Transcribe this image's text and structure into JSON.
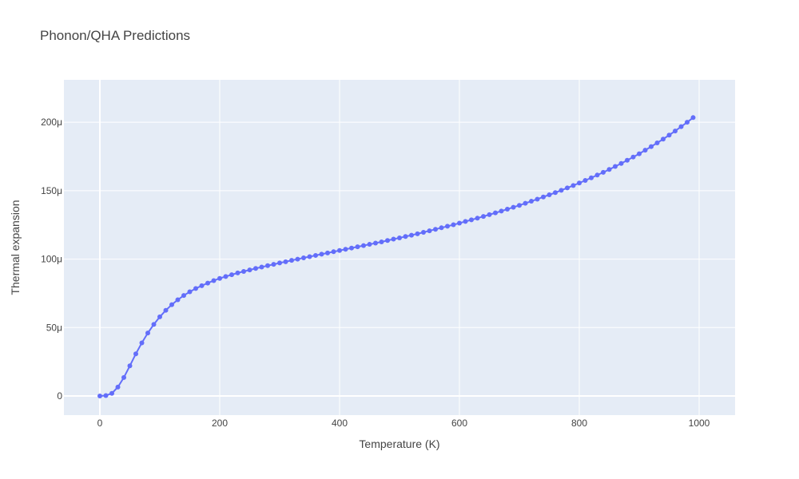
{
  "chart_data": {
    "type": "line",
    "title": "Phonon/QHA Predictions",
    "xlabel": "Temperature (K)",
    "ylabel": "Thermal expansion",
    "xlim": [
      -60,
      1060
    ],
    "ylim": [
      -14,
      231
    ],
    "x_ticks": [
      0,
      200,
      400,
      600,
      800,
      1000
    ],
    "x_tick_labels": [
      "0",
      "200",
      "400",
      "600",
      "800",
      "1000"
    ],
    "y_ticks": [
      0,
      50,
      100,
      150,
      200
    ],
    "y_tick_labels": [
      "0",
      "50μ",
      "100μ",
      "150μ",
      "200μ"
    ],
    "y_unit_note": "values in units of 1e-6",
    "grid": true,
    "legend": "none",
    "colors": {
      "series": "#636efa",
      "plot_bg": "#e5ecf6",
      "grid": "#ffffff"
    },
    "series": [
      {
        "x": [
          0,
          10,
          20,
          30,
          40,
          50,
          60,
          70,
          80,
          90,
          100,
          110,
          120,
          130,
          140,
          150,
          160,
          170,
          180,
          190,
          200,
          210,
          220,
          230,
          240,
          250,
          260,
          270,
          280,
          290,
          300,
          310,
          320,
          330,
          340,
          350,
          360,
          370,
          380,
          390,
          400,
          410,
          420,
          430,
          440,
          450,
          460,
          470,
          480,
          490,
          500,
          510,
          520,
          530,
          540,
          550,
          560,
          570,
          580,
          590,
          600,
          610,
          620,
          630,
          640,
          650,
          660,
          670,
          680,
          690,
          700,
          710,
          720,
          730,
          740,
          750,
          760,
          770,
          780,
          790,
          800,
          810,
          820,
          830,
          840,
          850,
          860,
          870,
          880,
          890,
          900,
          910,
          920,
          930,
          940,
          950,
          960,
          970,
          980,
          990
        ],
        "y": [
          0,
          0.3,
          1.9,
          6.5,
          13.5,
          22,
          30.8,
          38.8,
          46,
          52.3,
          57.8,
          62.6,
          66.7,
          70.3,
          73.4,
          76.1,
          78.5,
          80.6,
          82.5,
          84.3,
          85.9,
          87.3,
          88.6,
          89.9,
          91,
          92.1,
          93.2,
          94.2,
          95.2,
          96.2,
          97.2,
          98.1,
          99.1,
          100,
          100.9,
          101.8,
          102.7,
          103.6,
          104.5,
          105.4,
          106.3,
          107.2,
          108.1,
          109,
          109.9,
          110.8,
          111.7,
          112.6,
          113.6,
          114.6,
          115.5,
          116.5,
          117.5,
          118.5,
          119.6,
          120.7,
          121.8,
          122.9,
          124,
          125.1,
          126.3,
          127.5,
          128.7,
          129.9,
          131.2,
          132.5,
          133.8,
          135.1,
          136.5,
          137.9,
          139.3,
          140.8,
          142.3,
          143.8,
          145.4,
          147,
          148.6,
          150.3,
          152,
          153.8,
          155.6,
          157.5,
          159.4,
          161.4,
          163.4,
          165.5,
          167.7,
          169.9,
          172.2,
          174.6,
          177,
          179.6,
          182.2,
          184.9,
          187.7,
          190.6,
          193.6,
          196.8,
          200,
          203.4
        ]
      }
    ]
  }
}
